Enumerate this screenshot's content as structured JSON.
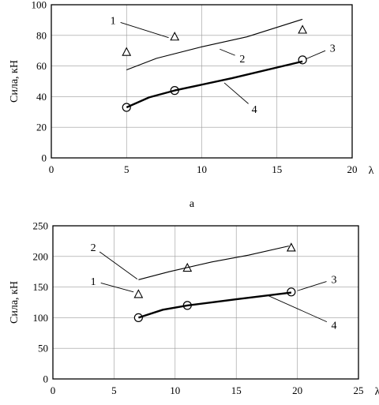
{
  "chart_data": [
    {
      "type": "line",
      "panel_label": "a",
      "xlabel": "λ",
      "ylabel": "Сила, кН",
      "xlim": [
        0,
        20
      ],
      "ylim": [
        0,
        100
      ],
      "x_ticks": [
        0,
        5,
        10,
        15,
        20
      ],
      "y_ticks": [
        0,
        20,
        40,
        60,
        80,
        100
      ],
      "grid": true,
      "series": [
        {
          "name": "1",
          "marker": "triangle",
          "line": false,
          "points": [
            [
              5,
              69
            ],
            [
              8.2,
              79
            ],
            [
              16.7,
              83.5
            ]
          ]
        },
        {
          "name": "2",
          "marker": "none",
          "line": true,
          "width": "thin",
          "points": [
            [
              5,
              57.5
            ],
            [
              7,
              65
            ],
            [
              10,
              72.5
            ],
            [
              13,
              79
            ],
            [
              16.7,
              90.5
            ]
          ]
        },
        {
          "name": "3",
          "marker": "circle",
          "line": false,
          "points": [
            [
              5,
              33
            ],
            [
              8.2,
              44
            ],
            [
              16.7,
              64
            ]
          ]
        },
        {
          "name": "4",
          "marker": "none",
          "line": true,
          "width": "thick",
          "points": [
            [
              5,
              33
            ],
            [
              6.5,
              39.5
            ],
            [
              8.2,
              44
            ],
            [
              12,
              52
            ],
            [
              16.7,
              63
            ]
          ]
        }
      ],
      "annotations": [
        {
          "text": "1",
          "x": 4.1,
          "y": 90,
          "to": [
            7.8,
            78.5
          ]
        },
        {
          "text": "2",
          "x": 12.7,
          "y": 65,
          "to": [
            11.2,
            71
          ]
        },
        {
          "text": "3",
          "x": 18.7,
          "y": 72,
          "to": [
            16.9,
            64.5
          ]
        },
        {
          "text": "4",
          "x": 13.5,
          "y": 32,
          "to": [
            11.5,
            49
          ]
        }
      ]
    },
    {
      "type": "line",
      "xlabel": "λ",
      "ylabel": "Сила, кН",
      "xlim": [
        0,
        25
      ],
      "ylim": [
        0,
        250
      ],
      "x_ticks": [
        0,
        5,
        10,
        15,
        20,
        25
      ],
      "y_ticks": [
        0,
        50,
        100,
        150,
        200,
        250
      ],
      "grid": true,
      "series": [
        {
          "name": "1",
          "marker": "triangle",
          "line": false,
          "points": [
            [
              7,
              138
            ],
            [
              11,
              181
            ],
            [
              19.5,
              214
            ]
          ]
        },
        {
          "name": "2",
          "marker": "none",
          "line": true,
          "width": "thin",
          "points": [
            [
              7,
              162
            ],
            [
              9.5,
              175
            ],
            [
              13,
              191
            ],
            [
              16,
              202
            ],
            [
              19.3,
              217
            ]
          ]
        },
        {
          "name": "3",
          "marker": "circle",
          "line": false,
          "points": [
            [
              7,
              100
            ],
            [
              11,
              120
            ],
            [
              19.5,
              142
            ]
          ]
        },
        {
          "name": "4",
          "marker": "none",
          "line": true,
          "width": "thick",
          "points": [
            [
              7,
              100
            ],
            [
              9,
              113
            ],
            [
              11,
              120
            ],
            [
              15,
              130
            ],
            [
              19.5,
              141
            ]
          ]
        }
      ],
      "annotations": [
        {
          "text": "1",
          "x": 3.3,
          "y": 160,
          "to": [
            6.6,
            142
          ]
        },
        {
          "text": "2",
          "x": 3.3,
          "y": 215,
          "to": [
            6.9,
            163
          ]
        },
        {
          "text": "3",
          "x": 23,
          "y": 163,
          "to": [
            20,
            144
          ]
        },
        {
          "text": "4",
          "x": 23,
          "y": 88,
          "to": [
            17.5,
            137
          ]
        }
      ]
    }
  ]
}
